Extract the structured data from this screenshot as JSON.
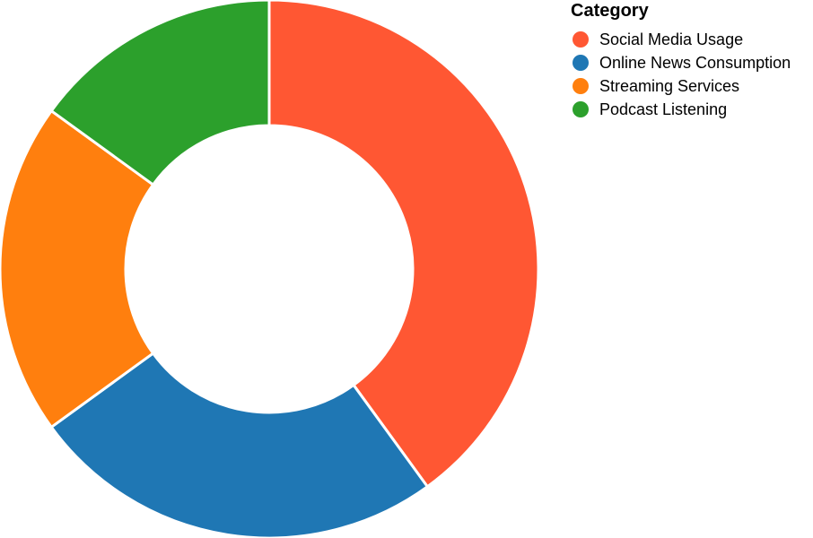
{
  "chart_data": {
    "type": "pie",
    "donut": true,
    "legend": {
      "title": "Category",
      "placement": "top-right"
    },
    "slices": [
      {
        "label": "Social Media Usage",
        "value": 40,
        "color": "#ff5733"
      },
      {
        "label": "Online News Consumption",
        "value": 25,
        "color": "#1f77b4"
      },
      {
        "label": "Streaming Services",
        "value": 20,
        "color": "#ff7f0e"
      },
      {
        "label": "Podcast Listening",
        "value": 15,
        "color": "#2ca02c"
      }
    ]
  }
}
